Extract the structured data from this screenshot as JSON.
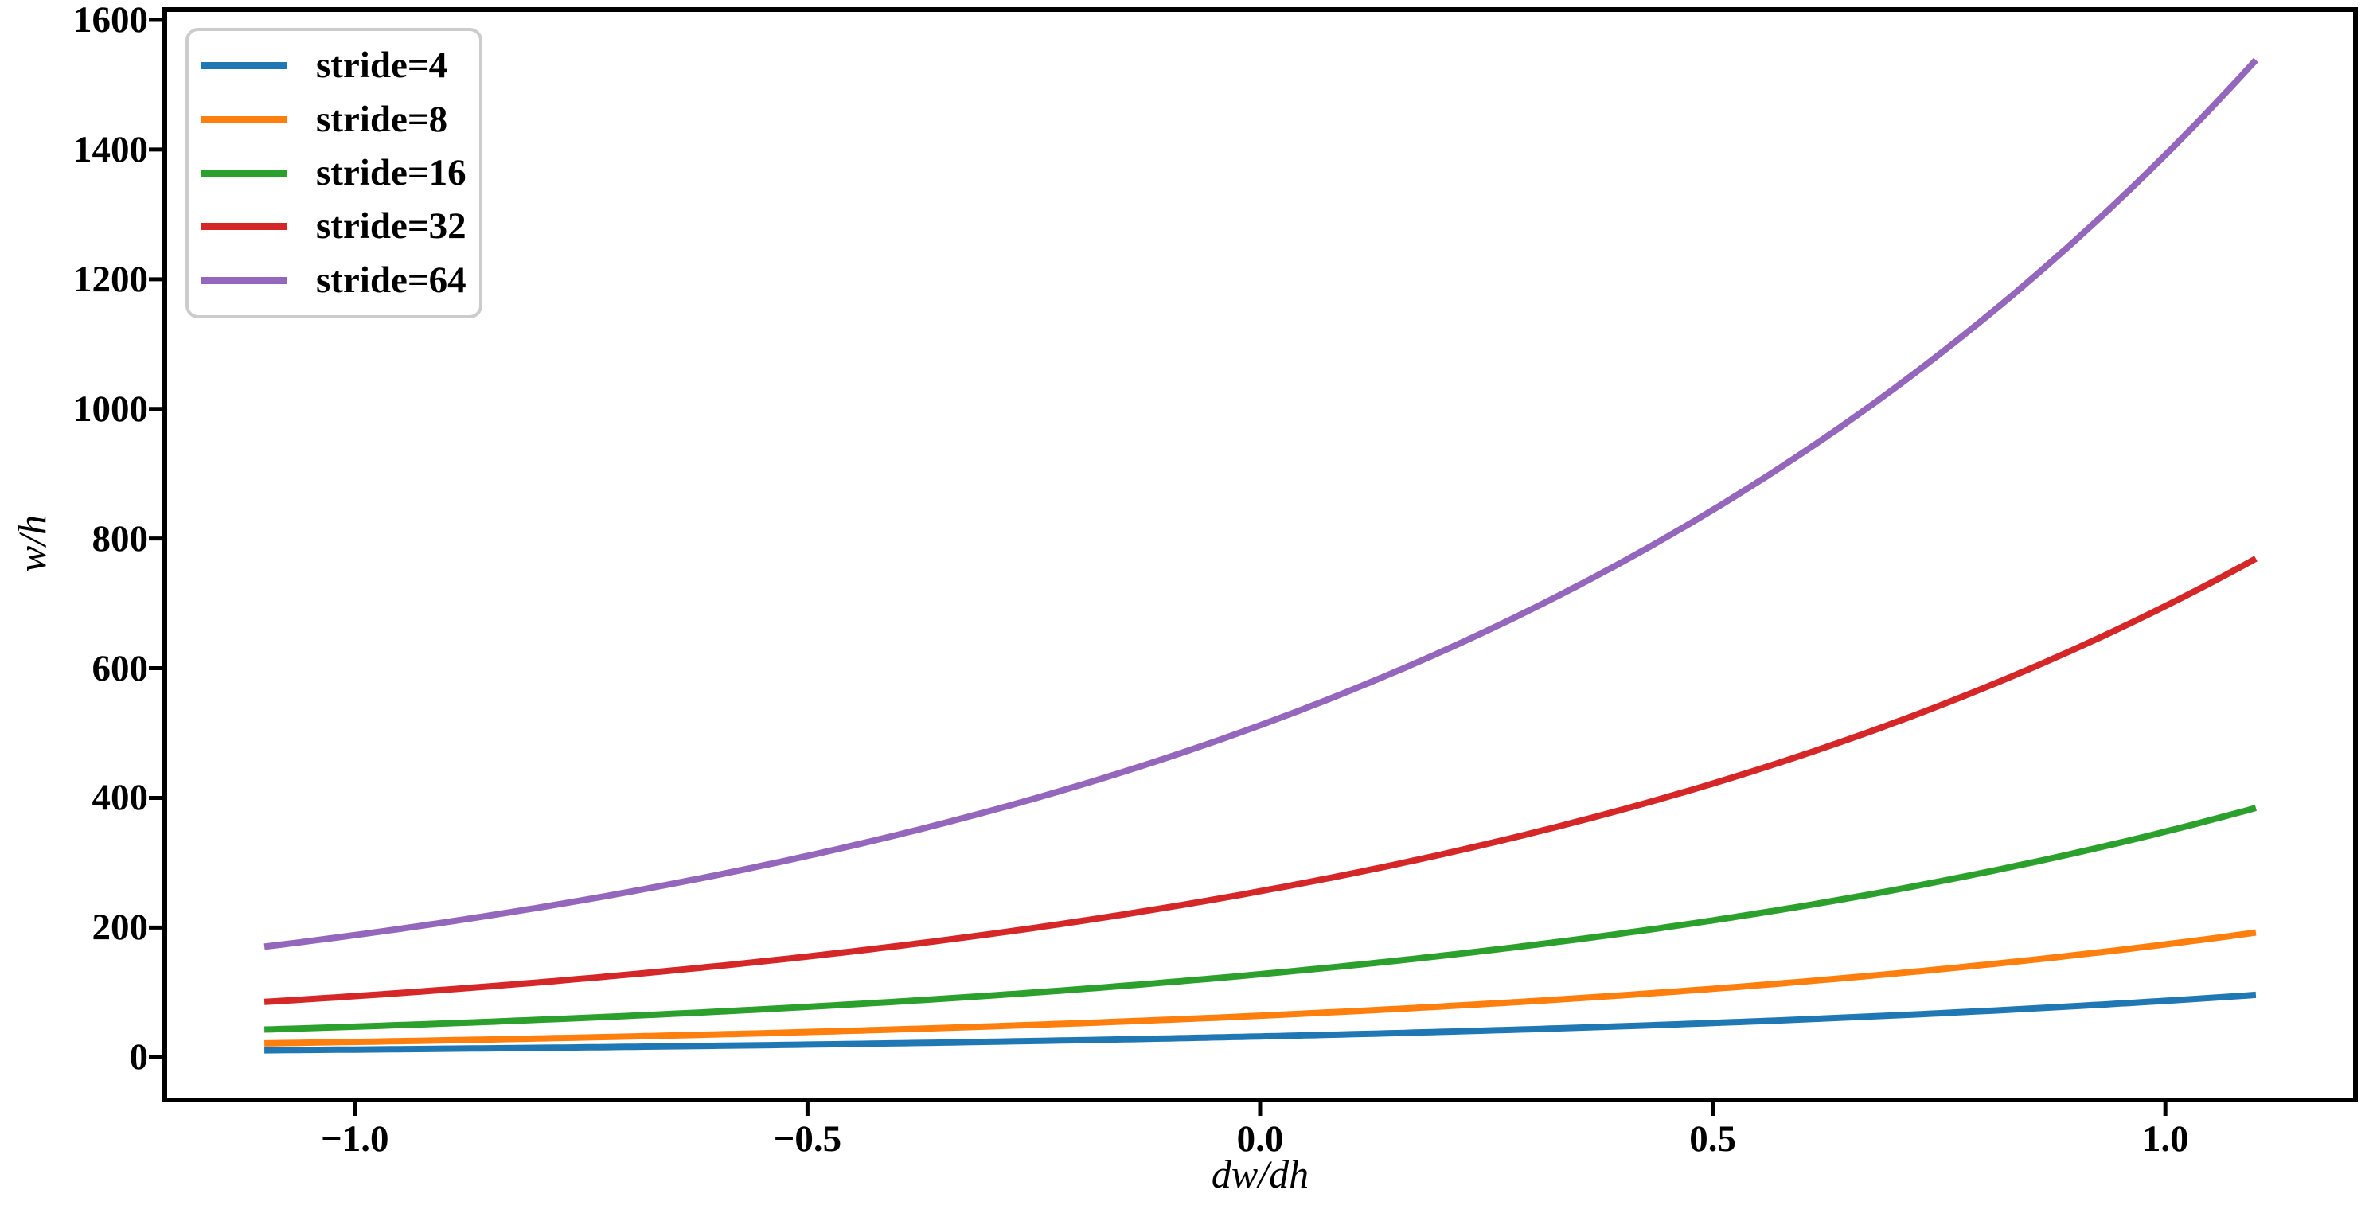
{
  "chart_data": {
    "type": "line",
    "title": "",
    "xlabel": "dw/dh",
    "ylabel": "w/h",
    "grid": false,
    "background_color": "#ffffff",
    "axis_color": "#000000",
    "legend_position": "upper left",
    "legend_border_color": "#cccccc",
    "xlim": [
      -1.21,
      1.21
    ],
    "ylim": [
      -66,
      1616
    ],
    "x_ticks": [
      -1.0,
      -0.5,
      0.0,
      0.5,
      1.0
    ],
    "x_tick_labels": [
      "−1.0",
      "−0.5",
      "0.0",
      "0.5",
      "1.0"
    ],
    "y_ticks": [
      0,
      200,
      400,
      600,
      800,
      1000,
      1200,
      1400,
      1600
    ],
    "y_tick_labels": [
      "0",
      "200",
      "400",
      "600",
      "800",
      "1000",
      "1200",
      "1400",
      "1600"
    ],
    "x_range": [
      -1.1,
      1.1
    ],
    "x": [
      -1.1,
      -1.0,
      -0.9,
      -0.8,
      -0.7,
      -0.6,
      -0.5,
      -0.4,
      -0.3,
      -0.2,
      -0.1,
      0.0,
      0.1,
      0.2,
      0.3,
      0.4,
      0.5,
      0.6,
      0.7,
      0.8,
      0.9,
      1.0,
      1.1
    ],
    "series": [
      {
        "name": "stride=4",
        "stride": 4,
        "coeff": 32,
        "color": "#1f77b4",
        "values": [
          10.7,
          11.8,
          13.0,
          14.4,
          15.9,
          17.6,
          19.4,
          21.5,
          23.7,
          26.2,
          29.0,
          32.0,
          35.4,
          39.1,
          43.2,
          47.7,
          52.8,
          58.3,
          64.4,
          71.2,
          78.7,
          87.0,
          96.1
        ]
      },
      {
        "name": "stride=8",
        "stride": 8,
        "coeff": 64,
        "color": "#ff7f0e",
        "values": [
          21.3,
          23.5,
          26.0,
          28.8,
          31.8,
          35.1,
          38.8,
          42.9,
          47.4,
          52.4,
          57.9,
          64.0,
          70.7,
          78.2,
          86.4,
          95.5,
          105.5,
          116.6,
          128.9,
          142.4,
          157.4,
          174.0,
          192.3
        ]
      },
      {
        "name": "stride=16",
        "stride": 16,
        "coeff": 128,
        "color": "#2ca02c",
        "values": [
          42.6,
          47.1,
          52.0,
          57.5,
          63.6,
          70.2,
          77.6,
          85.8,
          94.8,
          104.8,
          115.8,
          128.0,
          141.5,
          156.3,
          172.8,
          191.0,
          211.0,
          233.2,
          257.8,
          284.9,
          314.8,
          347.9,
          384.5
        ]
      },
      {
        "name": "stride=32",
        "stride": 32,
        "coeff": 256,
        "color": "#d62728",
        "values": [
          85.2,
          94.2,
          104.1,
          115.0,
          127.1,
          140.5,
          155.3,
          171.6,
          189.7,
          209.6,
          231.6,
          256.0,
          282.9,
          312.7,
          345.6,
          381.9,
          422.1,
          466.5,
          515.5,
          569.7,
          629.7,
          695.9,
          769.1
        ]
      },
      {
        "name": "stride=64",
        "stride": 64,
        "coeff": 512,
        "color": "#9467bd",
        "values": [
          170.4,
          188.4,
          208.2,
          230.1,
          254.3,
          281.0,
          310.5,
          343.2,
          379.3,
          419.2,
          463.3,
          512.0,
          565.8,
          625.4,
          691.1,
          763.8,
          844.2,
          932.9,
          1031.0,
          1139.5,
          1259.3,
          1391.8,
          1538.1
        ]
      }
    ]
  }
}
